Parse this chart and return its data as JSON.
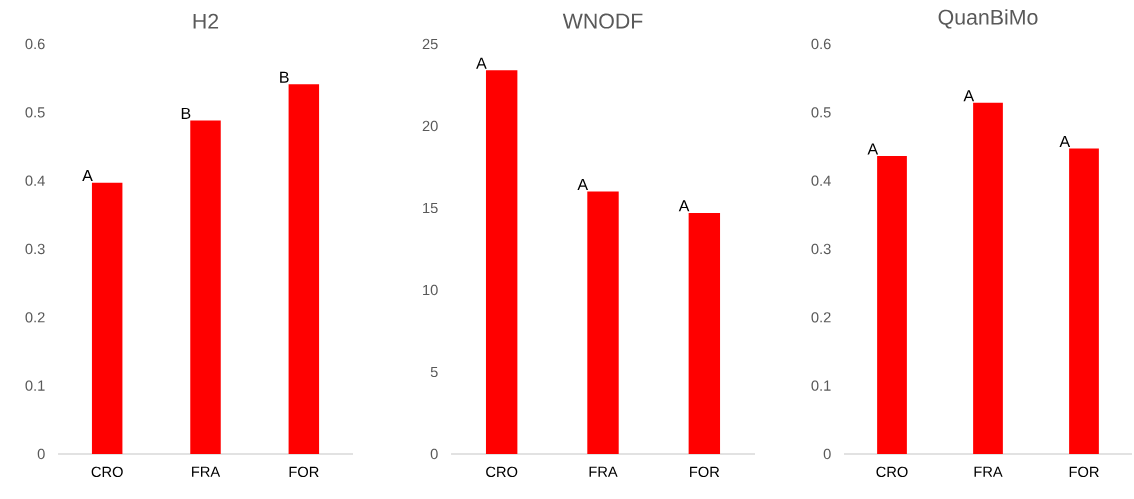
{
  "chart_data": [
    {
      "type": "bar",
      "title": "H2",
      "categories": [
        "CRO",
        "FRA",
        "FOR"
      ],
      "values": [
        0.397,
        0.488,
        0.541
      ],
      "color": "#ff0000",
      "ylim": [
        0,
        0.6
      ],
      "yticks": [
        0,
        0.1,
        0.2,
        0.3,
        0.4,
        0.5,
        0.6
      ],
      "annotations": [
        {
          "text": "A",
          "x": "CRO",
          "y": 0.397
        },
        {
          "text": "B",
          "x": "FRA",
          "y": 0.488
        },
        {
          "text": "B",
          "x": "FOR",
          "y": 0.541
        }
      ]
    },
    {
      "type": "bar",
      "title": "WNODF",
      "categories": [
        "CRO",
        "FRA",
        "FOR"
      ],
      "values": [
        23.4,
        16.0,
        14.7
      ],
      "color": "#ff0000",
      "ylim": [
        0,
        25
      ],
      "yticks": [
        0,
        5,
        10,
        15,
        20,
        25
      ],
      "annotations": [
        {
          "text": "A",
          "x": "CRO",
          "y": 23.4
        },
        {
          "text": "A",
          "x": "FRA",
          "y": 16.0
        },
        {
          "text": "A",
          "x": "FOR",
          "y": 14.7
        }
      ]
    },
    {
      "type": "bar",
      "title": "QuanBiMo",
      "categories": [
        "CRO",
        "FRA",
        "FOR"
      ],
      "values": [
        0.436,
        0.514,
        0.447
      ],
      "color": "#ff0000",
      "ylim": [
        0,
        0.6
      ],
      "yticks": [
        0,
        0.1,
        0.2,
        0.3,
        0.4,
        0.5,
        0.6
      ],
      "annotations": [
        {
          "text": "A",
          "x": "CRO",
          "y": 0.436
        },
        {
          "text": "A",
          "x": "FRA",
          "y": 0.514
        },
        {
          "text": "A",
          "x": "FOR",
          "y": 0.447
        }
      ]
    }
  ]
}
